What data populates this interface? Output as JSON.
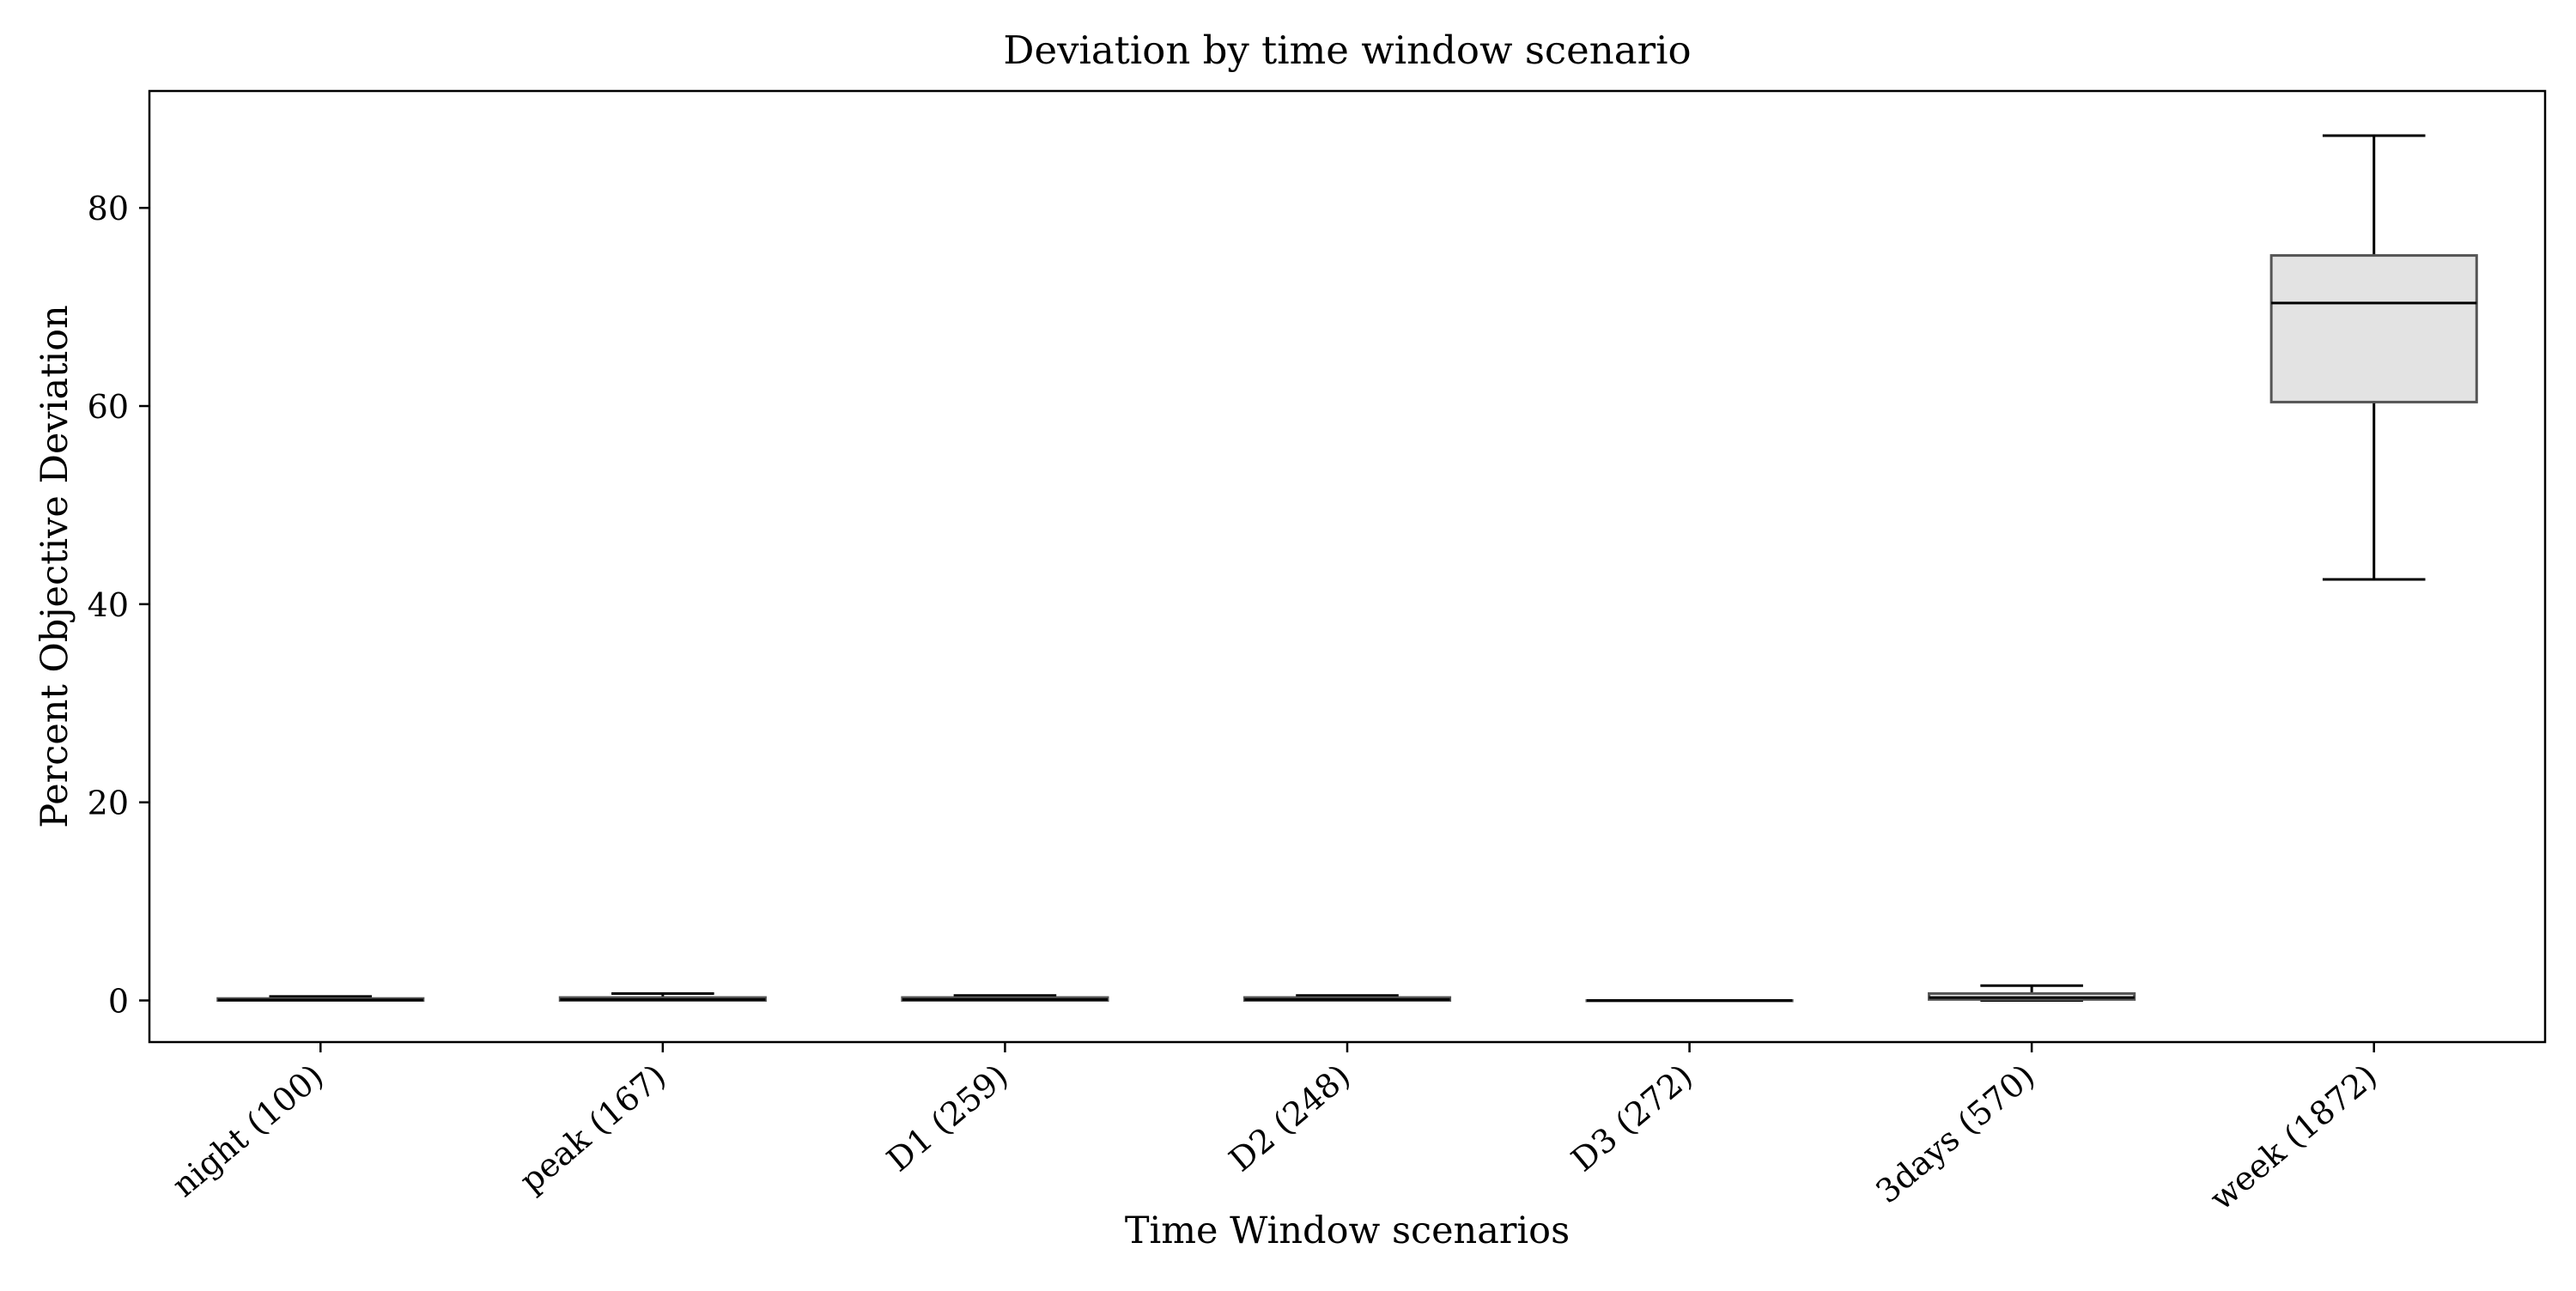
{
  "chart_data": {
    "type": "box",
    "title": "Deviation by time window scenario",
    "xlabel": "Time Window scenarios",
    "ylabel": "Percent Objective Deviation",
    "ylim": [
      -4.2,
      91.8
    ],
    "yticks": [
      0,
      20,
      40,
      60,
      80
    ],
    "grid": false,
    "legend": "none",
    "categories": [
      "night (100)",
      "peak (167)",
      "D1 (259)",
      "D2 (248)",
      "D3 (272)",
      "3days (570)",
      "week (1872)"
    ],
    "boxes": [
      {
        "whisker_low": 0.0,
        "q1": 0.0,
        "median": 0.05,
        "q3": 0.2,
        "whisker_high": 0.4
      },
      {
        "whisker_low": 0.0,
        "q1": 0.0,
        "median": 0.1,
        "q3": 0.3,
        "whisker_high": 0.7
      },
      {
        "whisker_low": 0.0,
        "q1": 0.0,
        "median": 0.1,
        "q3": 0.3,
        "whisker_high": 0.5
      },
      {
        "whisker_low": 0.0,
        "q1": 0.0,
        "median": 0.1,
        "q3": 0.3,
        "whisker_high": 0.5
      },
      {
        "whisker_low": 0.0,
        "q1": 0.0,
        "median": 0.0,
        "q3": 0.0,
        "whisker_high": 0.0
      },
      {
        "whisker_low": 0.0,
        "q1": 0.1,
        "median": 0.3,
        "q3": 0.7,
        "whisker_high": 1.5
      },
      {
        "whisker_low": 42.5,
        "q1": 60.4,
        "median": 70.4,
        "q3": 75.2,
        "whisker_high": 87.3
      }
    ],
    "colors": {
      "box_fill": "#e3e3e3",
      "box_edge": "#555555",
      "median": "#000000",
      "whisker": "#000000",
      "axis": "#000000"
    }
  }
}
